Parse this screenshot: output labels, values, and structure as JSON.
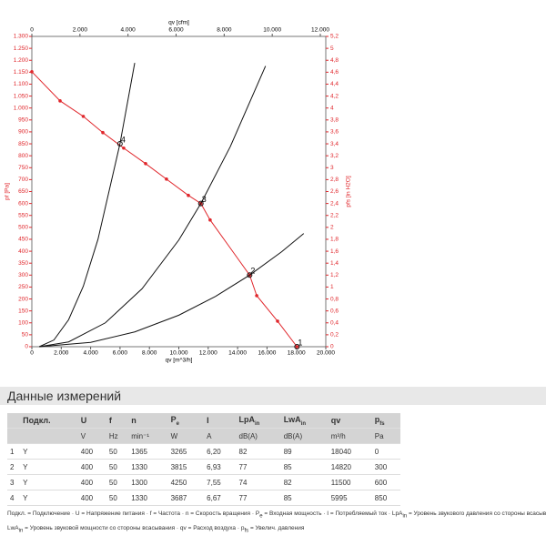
{
  "chart_data": {
    "type": "line",
    "xlabel": "qv [m^3/h]",
    "ylabel": "pf [Pa]",
    "y2label": "pfs [in H2O]",
    "x2label": "qv [cfm]",
    "xlim": [
      0,
      20000
    ],
    "xticks": [
      0,
      {
        "value": 2000,
        "label": "2.000"
      },
      {
        "value": 4000,
        "label": "4.000"
      },
      {
        "value": 6000,
        "label": "6.000"
      },
      {
        "value": 8000,
        "label": "8.000"
      },
      {
        "value": 10000,
        "label": "10.000"
      },
      {
        "value": 12000,
        "label": "12.000"
      },
      {
        "value": 14000,
        "label": "14.000"
      },
      {
        "value": 16000,
        "label": "16.000"
      },
      {
        "value": 18000,
        "label": "18.000"
      },
      {
        "value": 20000,
        "label": "20.000"
      }
    ],
    "x2lim": [
      0,
      12000
    ],
    "x2ticks": [
      0,
      {
        "value": 2000,
        "label": "2.000"
      },
      {
        "value": 4000,
        "label": "4.000"
      },
      {
        "value": 6000,
        "label": "6.000"
      },
      {
        "value": 8000,
        "label": "8.000"
      },
      {
        "value": 10000,
        "label": "10.000"
      },
      {
        "value": 12000,
        "label": "12.000"
      }
    ],
    "ylim": [
      0,
      1300
    ],
    "yticks": [
      0,
      50,
      100,
      150,
      200,
      250,
      300,
      350,
      400,
      450,
      500,
      550,
      600,
      650,
      700,
      750,
      800,
      850,
      900,
      950,
      {
        "value": 1000,
        "label": "1.000"
      },
      {
        "value": 1050,
        "label": "1.050"
      },
      {
        "value": 1100,
        "label": "1.100"
      },
      {
        "value": 1150,
        "label": "1.150"
      },
      {
        "value": 1200,
        "label": "1.200"
      },
      {
        "value": 1250,
        "label": "1.250"
      },
      {
        "value": 1300,
        "label": "1.300"
      }
    ],
    "y2lim": [
      0,
      5.2
    ],
    "y2ticks": [
      0,
      {
        "value": 0.2,
        "label": "0,2"
      },
      {
        "value": 0.4,
        "label": "0,4"
      },
      {
        "value": 0.6,
        "label": "0,6"
      },
      {
        "value": 0.8,
        "label": "0,8"
      },
      1,
      {
        "value": 1.2,
        "label": "1,2"
      },
      {
        "value": 1.4,
        "label": "1,4"
      },
      {
        "value": 1.6,
        "label": "1,6"
      },
      {
        "value": 1.8,
        "label": "1,8"
      },
      2,
      {
        "value": 2.2,
        "label": "2,2"
      },
      {
        "value": 2.4,
        "label": "2,4"
      },
      {
        "value": 2.6,
        "label": "2,6"
      },
      {
        "value": 2.8,
        "label": "2,8"
      },
      3,
      {
        "value": 3.2,
        "label": "3,2"
      },
      {
        "value": 3.4,
        "label": "3,4"
      },
      {
        "value": 3.6,
        "label": "3,6"
      },
      {
        "value": 3.8,
        "label": "3,8"
      },
      4,
      {
        "value": 4.2,
        "label": "4,2"
      },
      {
        "value": 4.4,
        "label": "4,4"
      },
      {
        "value": 4.6,
        "label": "4,6"
      },
      {
        "value": 4.8,
        "label": "4,8"
      },
      5,
      {
        "value": 5.2,
        "label": "5,2"
      }
    ],
    "axis_color": "#e0262b",
    "series": [
      {
        "color": "#e0262b",
        "markers": true,
        "x": [
          0,
          1920,
          3500,
          4830,
          6250,
          7740,
          9160,
          10650,
          11500,
          12130,
          14820,
          15300,
          16720,
          18040
        ],
        "values": [
          1152,
          1030,
          965,
          897,
          832,
          767,
          702,
          634,
          600,
          531,
          300,
          214,
          107,
          0
        ]
      },
      {
        "color": "#111111",
        "markers": false,
        "x": [
          500,
          1500,
          2500,
          3500,
          4500,
          5995,
          7000
        ],
        "values": [
          0,
          28,
          113,
          253,
          450,
          850,
          1189
        ]
      },
      {
        "color": "#111111",
        "markers": false,
        "x": [
          500,
          2500,
          5000,
          7500,
          10000,
          11500,
          13500,
          15900
        ],
        "values": [
          0,
          20,
          100,
          243,
          447,
          600,
          838,
          1176
        ]
      },
      {
        "color": "#111111",
        "markers": false,
        "x": [
          500,
          4000,
          7000,
          10000,
          12500,
          14820,
          17000,
          18500
        ],
        "values": [
          0,
          18,
          62,
          132,
          211,
          300,
          398,
          474
        ]
      }
    ],
    "points": {
      "x": [
        18040,
        14820,
        11500,
        5995
      ],
      "values": [
        0,
        300,
        600,
        850
      ],
      "labels": [
        "1",
        "2",
        "3",
        "4"
      ]
    }
  },
  "section_title": "Данные измерений",
  "table": {
    "header": [
      {
        "text": ""
      },
      {
        "text": "Подкл."
      },
      {
        "text": "U"
      },
      {
        "text": "f"
      },
      {
        "text": "n"
      },
      {
        "text": "P",
        "sub": "e"
      },
      {
        "text": "I"
      },
      {
        "text": "LpA",
        "sub": "in"
      },
      {
        "text": "LwA",
        "sub": "in"
      },
      {
        "text": "qv"
      },
      {
        "text": "p",
        "sub": "fs"
      }
    ],
    "units": [
      "",
      "",
      "V",
      "Hz",
      "min⁻¹",
      "W",
      "A",
      "dB(A)",
      "dB(A)",
      "m³/h",
      "Pa"
    ],
    "rows": [
      [
        "1",
        "Y",
        "400",
        "50",
        "1365",
        "3265",
        "6,20",
        "82",
        "89",
        "18040",
        "0"
      ],
      [
        "2",
        "Y",
        "400",
        "50",
        "1330",
        "3815",
        "6,93",
        "77",
        "85",
        "14820",
        "300"
      ],
      [
        "3",
        "Y",
        "400",
        "50",
        "1300",
        "4250",
        "7,55",
        "74",
        "82",
        "11500",
        "600"
      ],
      [
        "4",
        "Y",
        "400",
        "50",
        "1330",
        "3687",
        "6,67",
        "77",
        "85",
        "5995",
        "850"
      ]
    ]
  },
  "separator": "·",
  "footnote": [
    [
      {
        "sym": "Подкл.",
        "desc": "= Подключение"
      },
      {
        "sym": "U",
        "desc": "= Напряжение питания"
      },
      {
        "sym": "f",
        "desc": "= Частота"
      },
      {
        "sym": "n",
        "desc": "= Скорость вращения"
      },
      {
        "sym": "P",
        "sub": "e",
        "desc": "= Входная мощность"
      },
      {
        "sym": "I",
        "desc": "= Потребляемый ток"
      },
      {
        "sym": "LpA",
        "sub": "in",
        "desc": "= Уровень звукового давления со стороны всасывания"
      }
    ],
    [
      {
        "sym": "LwA",
        "sub": "in",
        "desc": "= Уровень звуковой мощности со стороны всасывания"
      },
      {
        "sym": "qv",
        "desc": "= Расход воздуха"
      },
      {
        "sym": "p",
        "sub": "fs",
        "desc": "= Увелич. давления"
      }
    ]
  ]
}
